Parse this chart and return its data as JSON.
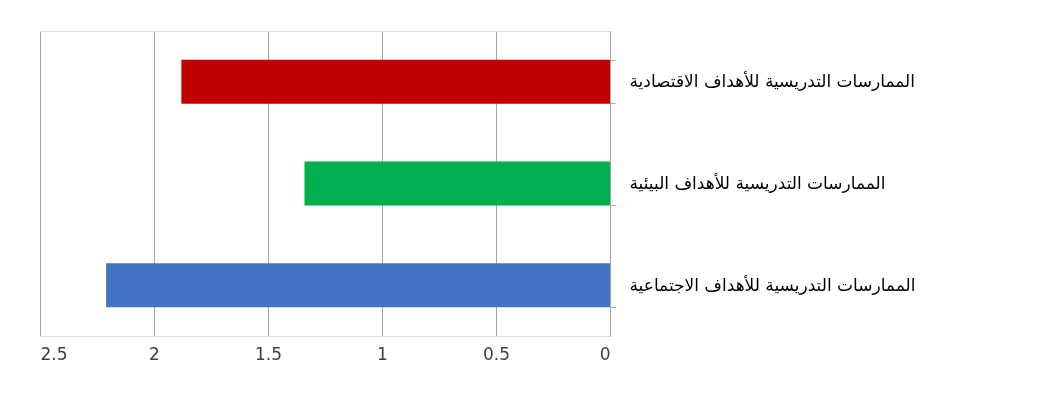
{
  "chart_data": {
    "type": "bar",
    "orientation": "horizontal",
    "categories": [
      "الممارسات التدريسية للأهداف الاقتصادية",
      "الممارسات التدريسية للأهداف البيئية",
      "الممارسات التدريسية للأهداف الاجتماعية"
    ],
    "values": [
      1.88,
      1.34,
      2.21
    ],
    "colors": [
      "#c00000",
      "#00b050",
      "#4472c4"
    ],
    "xlim": [
      2.5,
      0
    ],
    "xticks": [
      2.5,
      2,
      1.5,
      1,
      0.5,
      0
    ],
    "grid": "x"
  }
}
